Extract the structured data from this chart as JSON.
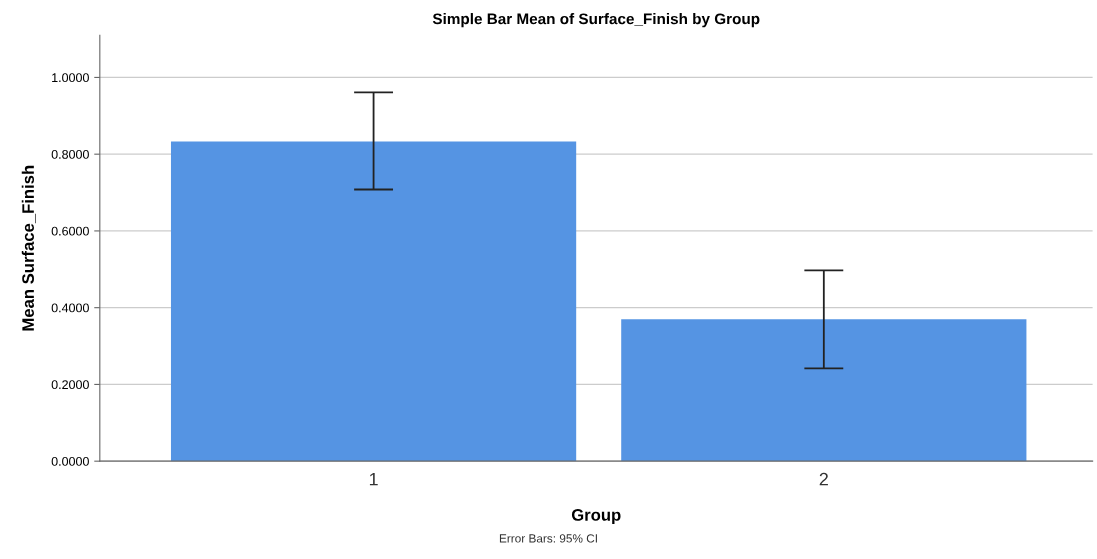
{
  "chart_data": {
    "type": "bar",
    "title": "Simple Bar Mean of Surface_Finish by Group",
    "xlabel": "Group",
    "ylabel": "Mean Surface_Finish",
    "categories": [
      "1",
      "2"
    ],
    "values": [
      0.833,
      0.37
    ],
    "color": "#5594e3",
    "errors": [
      [
        0.708,
        0.961
      ],
      [
        0.242,
        0.497
      ]
    ],
    "ylim": [
      0,
      1.11
    ],
    "yticks": [
      {
        "value": 0,
        "label": "0.0000"
      },
      {
        "value": 0.2,
        "label": "0.2000"
      },
      {
        "value": 0.4,
        "label": "0.4000"
      },
      {
        "value": 0.6,
        "label": "0.6000"
      },
      {
        "value": 0.8,
        "label": "0.8000"
      },
      {
        "value": 1.0,
        "label": "1.0000"
      }
    ],
    "grid": "y",
    "annotations": [
      "Error Bars: 95% CI"
    ]
  }
}
